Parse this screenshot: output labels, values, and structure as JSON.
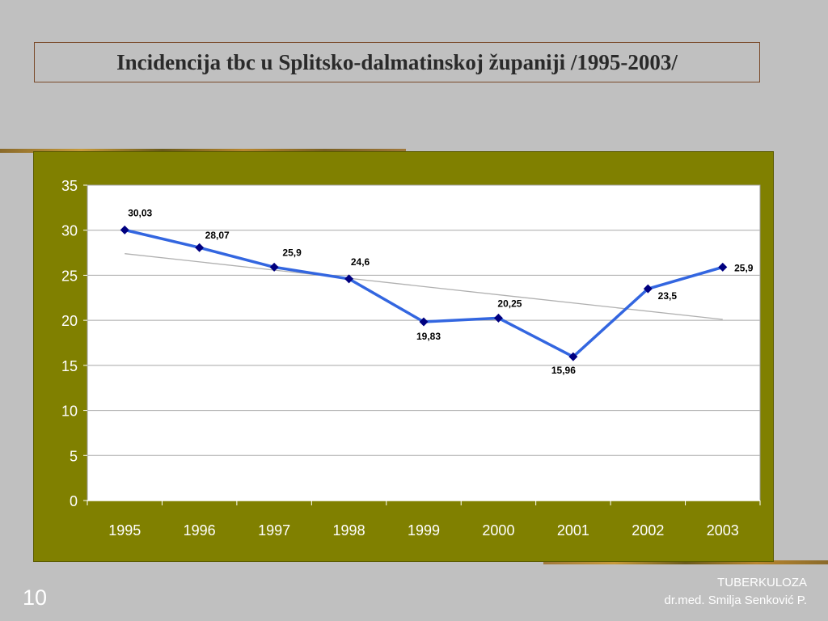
{
  "slide": {
    "title": "Incidencija tbc u Splitsko-dalmatinskoj županiji /1995-2003/",
    "number": "10",
    "footer_line1": "TUBERKULOZA",
    "footer_line2": "dr.med. Smilja Senković P."
  },
  "colors": {
    "background": "#c0c0c0",
    "chart_frame": "#808000",
    "plot_area": "#ffffff",
    "series_line": "#3366e0",
    "marker": "#000080",
    "trend_line": "#b0b0b0"
  },
  "chart_data": {
    "type": "line",
    "categories": [
      "1995",
      "1996",
      "1997",
      "1998",
      "1999",
      "2000",
      "2001",
      "2002",
      "2003"
    ],
    "series": [
      {
        "values": [
          30.03,
          28.07,
          25.9,
          24.6,
          19.83,
          20.25,
          15.96,
          23.5,
          25.9
        ],
        "data_labels": [
          "30,03",
          "28,07",
          "25,9",
          "24,6",
          "19,83",
          "20,25",
          "15,96",
          "23,5",
          "25,9"
        ]
      }
    ],
    "trendline": {
      "type": "linear",
      "from": 27.4,
      "to": 20.1
    },
    "ylim": [
      0,
      35
    ],
    "yticks": [
      "0",
      "5",
      "10",
      "15",
      "20",
      "25",
      "30",
      "35"
    ],
    "grid": true,
    "legend": "none"
  }
}
